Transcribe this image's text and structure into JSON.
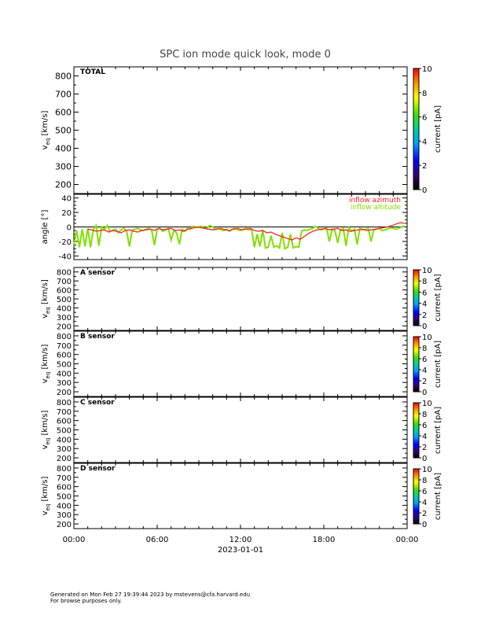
{
  "title": "SPC ion mode quick look, mode 0",
  "chart_data": [
    {
      "type": "heatmap",
      "panel": "TOTAL",
      "label": "TOTAL",
      "ylabel": "v_eq [km/s]",
      "ylim": [
        150,
        850
      ],
      "yticks": [
        200,
        300,
        400,
        500,
        600,
        700,
        800
      ],
      "colorbar": {
        "label": "current [pA]",
        "range": [
          0,
          10
        ],
        "ticks": [
          0,
          2,
          4,
          6,
          8,
          10
        ]
      },
      "values": []
    },
    {
      "type": "line",
      "panel": "angle",
      "ylabel": "angle [°]",
      "ylim": [
        -45,
        45
      ],
      "yticks": [
        -40,
        -20,
        0,
        20,
        40
      ],
      "reference_line": 0,
      "series": [
        {
          "name": "inflow azimuth",
          "color": "#ff2020",
          "x": [
            1.0,
            1.3,
            1.6,
            1.9,
            2.2,
            2.5,
            2.8,
            3.1,
            3.4,
            3.7,
            4.0,
            4.3,
            4.6,
            4.9,
            5.2,
            5.5,
            5.8,
            6.1,
            6.4,
            6.7,
            7.0,
            7.3,
            7.6,
            7.9,
            8.2,
            8.5,
            8.8,
            9.1,
            9.4,
            9.7,
            10.0,
            10.3,
            10.6,
            10.9,
            11.2,
            11.5,
            11.8,
            12.1,
            12.4,
            12.7,
            13.0,
            13.3,
            13.6,
            13.9,
            14.2,
            14.5,
            14.8,
            15.1,
            15.4,
            15.7,
            16.0,
            16.3,
            16.6,
            16.9,
            17.2,
            17.5,
            17.8,
            18.1,
            18.4,
            18.7,
            19.0,
            19.3,
            19.6,
            19.9,
            20.2,
            20.5,
            20.8,
            21.1,
            21.4,
            21.7,
            22.0,
            22.3,
            22.6,
            22.9,
            23.2,
            23.5,
            23.8
          ],
          "y": [
            -3,
            -4,
            -6,
            -5,
            -4,
            -7,
            -5,
            -6,
            -8,
            -5,
            -4,
            -6,
            -7,
            -5,
            -4,
            -3,
            -5,
            -2,
            -4,
            -3,
            -2,
            -5,
            -4,
            -6,
            -3,
            -2,
            0,
            -1,
            -2,
            -3,
            -4,
            -3,
            -2,
            -4,
            -5,
            -3,
            -2,
            -4,
            -3,
            -2,
            -5,
            -6,
            -5,
            -8,
            -7,
            -10,
            -12,
            -14,
            -16,
            -18,
            -15,
            -17,
            -13,
            -9,
            -6,
            -4,
            -3,
            -2,
            -4,
            -3,
            -2,
            -5,
            -4,
            -6,
            -5,
            -4,
            -3,
            -5,
            -4,
            -3,
            -2,
            -1,
            0,
            2,
            4,
            6,
            5
          ]
        },
        {
          "name": "inflow altitude",
          "color": "#80e000",
          "x": [
            0.0,
            0.2,
            0.4,
            0.6,
            0.8,
            1.0,
            1.2,
            1.4,
            1.6,
            1.8,
            2.0,
            2.2,
            2.4,
            2.6,
            2.8,
            3.0,
            3.2,
            3.4,
            3.6,
            3.8,
            4.0,
            4.2,
            4.4,
            4.6,
            4.8,
            5.0,
            5.2,
            5.4,
            5.6,
            5.8,
            6.0,
            6.2,
            6.4,
            6.6,
            6.8,
            7.0,
            7.2,
            7.4,
            7.6,
            7.8,
            8.0,
            8.2,
            8.4,
            8.6,
            8.8,
            9.0,
            9.2,
            9.4,
            9.6,
            9.8,
            10.0,
            10.2,
            10.4,
            10.6,
            10.8,
            11.0,
            11.2,
            11.4,
            11.6,
            11.8,
            12.0,
            12.2,
            12.4,
            12.6,
            12.8,
            13.0,
            13.2,
            13.4,
            13.6,
            13.8,
            14.0,
            14.2,
            14.4,
            14.6,
            14.8,
            15.0,
            15.2,
            15.4,
            15.6,
            15.8,
            16.0,
            16.2,
            16.4,
            16.6,
            16.8,
            17.0,
            17.2,
            17.4,
            17.6,
            17.8,
            18.0,
            18.2,
            18.4,
            18.6,
            18.8,
            19.0,
            19.2,
            19.4,
            19.6,
            19.8,
            20.0,
            20.2,
            20.4,
            20.6,
            20.8,
            21.0,
            21.2,
            21.4,
            21.6,
            21.8,
            22.0,
            22.2,
            22.4,
            22.6,
            22.8,
            23.0,
            23.2,
            23.4,
            23.6,
            23.8
          ],
          "y": [
            -25,
            -5,
            -28,
            -3,
            -27,
            -2,
            -28,
            -4,
            2,
            -26,
            0,
            -3,
            2,
            -6,
            -5,
            -3,
            -8,
            -4,
            -2,
            -6,
            -27,
            -5,
            -3,
            -2,
            -4,
            -5,
            -3,
            -2,
            -4,
            -25,
            -3,
            -2,
            -6,
            -4,
            -2,
            -18,
            -5,
            -8,
            -24,
            -3,
            -6,
            -2,
            -3,
            1,
            -1,
            0,
            1,
            -2,
            -1,
            2,
            0,
            -3,
            -2,
            -4,
            -5,
            -3,
            -6,
            -3,
            -2,
            -4,
            -5,
            -3,
            -2,
            -4,
            -3,
            -28,
            -10,
            -27,
            -4,
            -29,
            -28,
            -12,
            -28,
            -26,
            -29,
            -8,
            -30,
            -28,
            -10,
            -29,
            -27,
            -28,
            -6,
            -4,
            -5,
            -3,
            -2,
            1,
            -2,
            -4,
            -3,
            -2,
            -20,
            -3,
            -5,
            -22,
            -4,
            -2,
            -26,
            -1,
            -6,
            -3,
            -24,
            -2,
            -4,
            -3,
            -2,
            -20,
            -4,
            -3,
            -2,
            -5,
            -4,
            -3,
            -1,
            -2,
            -3,
            -2,
            0,
            1
          ]
        }
      ]
    },
    {
      "type": "heatmap",
      "panel": "A sensor",
      "label": "A sensor",
      "ylabel": "v_eq [km/s]",
      "ylim": [
        150,
        850
      ],
      "yticks": [
        200,
        300,
        400,
        500,
        600,
        700,
        800
      ],
      "colorbar": {
        "label": "current [pA]",
        "range": [
          0,
          10
        ],
        "ticks": [
          0,
          2,
          4,
          6,
          8,
          10
        ]
      },
      "values": []
    },
    {
      "type": "heatmap",
      "panel": "B sensor",
      "label": "B sensor",
      "ylabel": "v_eq [km/s]",
      "ylim": [
        150,
        850
      ],
      "yticks": [
        200,
        300,
        400,
        500,
        600,
        700,
        800
      ],
      "colorbar": {
        "label": "current [pA]",
        "range": [
          0,
          10
        ],
        "ticks": [
          0,
          2,
          4,
          6,
          8,
          10
        ]
      },
      "values": []
    },
    {
      "type": "heatmap",
      "panel": "C sensor",
      "label": "C sensor",
      "ylabel": "v_eq [km/s]",
      "ylim": [
        150,
        850
      ],
      "yticks": [
        200,
        300,
        400,
        500,
        600,
        700,
        800
      ],
      "colorbar": {
        "label": "current [pA]",
        "range": [
          0,
          10
        ],
        "ticks": [
          0,
          2,
          4,
          6,
          8,
          10
        ]
      },
      "values": []
    },
    {
      "type": "heatmap",
      "panel": "D sensor",
      "label": "D sensor",
      "ylabel": "v_eq [km/s]",
      "ylim": [
        150,
        850
      ],
      "yticks": [
        200,
        300,
        400,
        500,
        600,
        700,
        800
      ],
      "colorbar": {
        "label": "current [pA]",
        "range": [
          0,
          10
        ],
        "ticks": [
          0,
          2,
          4,
          6,
          8,
          10
        ]
      },
      "values": []
    }
  ],
  "xaxis": {
    "range": [
      0,
      24
    ],
    "ticks": [
      0,
      6,
      12,
      18,
      24
    ],
    "tick_labels": [
      "00:00",
      "06:00",
      "12:00",
      "18:00",
      "00:00"
    ],
    "date_label": "2023-01-01"
  },
  "footer": {
    "line1": "Generated on Mon Feb 27 19:39:44 2023 by mstevens@cfa.harvard.edu",
    "line2": "For browse purposes only."
  }
}
